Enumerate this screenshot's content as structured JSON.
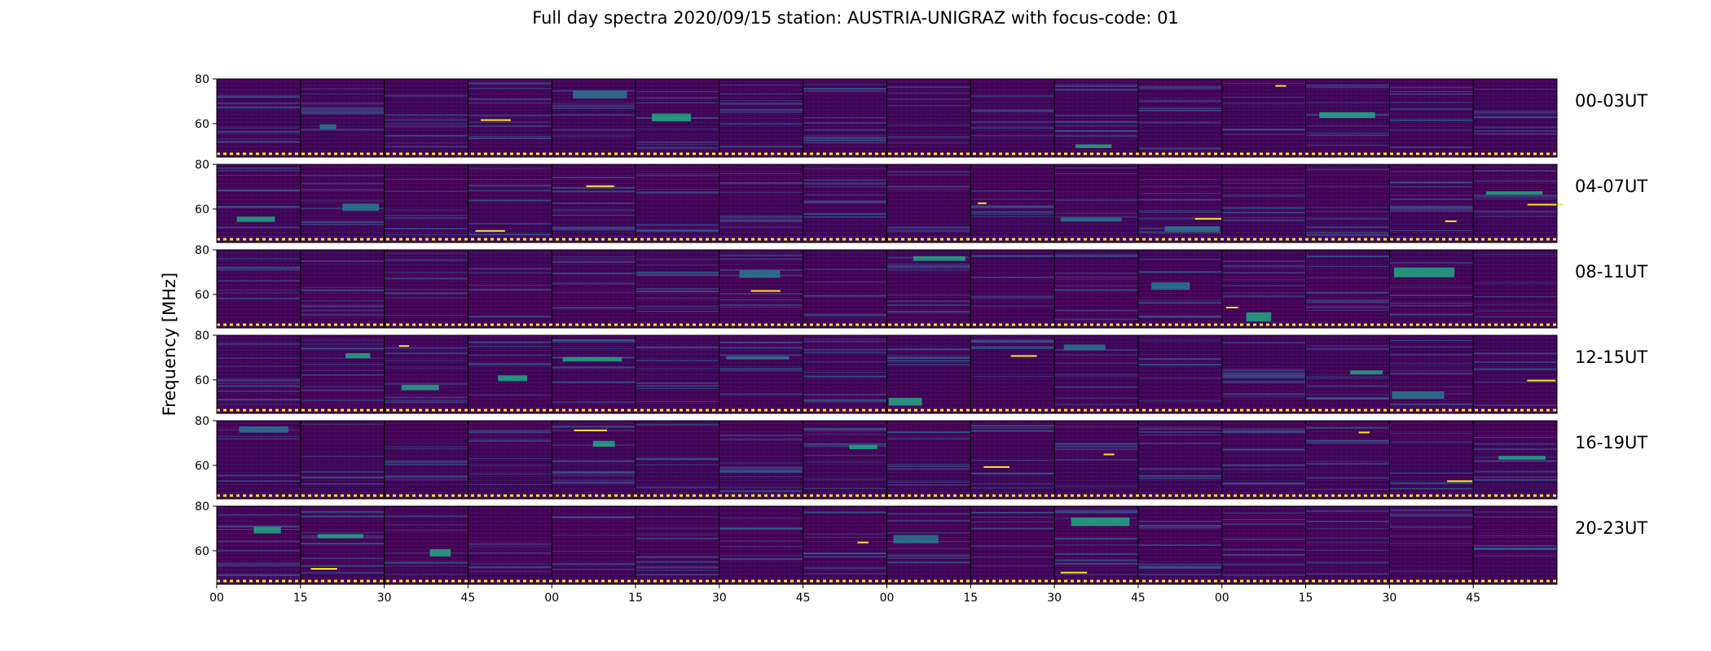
{
  "title": "Full day spectra 2020/09/15 station: AUSTRIA-UNIGRAZ with focus-code: 01",
  "chart_data": {
    "type": "heatmap",
    "title": "Full day spectra 2020/09/15 station: AUSTRIA-UNIGRAZ with focus-code: 01",
    "ylabel": "Frequency [MHz]",
    "xlabel": "",
    "ylim": [
      45,
      80
    ],
    "yticks": [
      "80",
      "60"
    ],
    "rows": [
      "00-03UT",
      "04-07UT",
      "08-11UT",
      "12-15UT",
      "16-19UT",
      "20-23UT"
    ],
    "xticks": [
      "00",
      "15",
      "30",
      "45",
      "00",
      "15",
      "30",
      "45",
      "00",
      "15",
      "30",
      "45",
      "00",
      "15",
      "30",
      "45"
    ],
    "panels_per_row": 16,
    "panel_minutes": 15,
    "colormap": "viridis",
    "colors": {
      "low": "#440154",
      "mid": "#2a788e",
      "high": "#22a884",
      "peak": "#fde725"
    },
    "grid": false
  }
}
